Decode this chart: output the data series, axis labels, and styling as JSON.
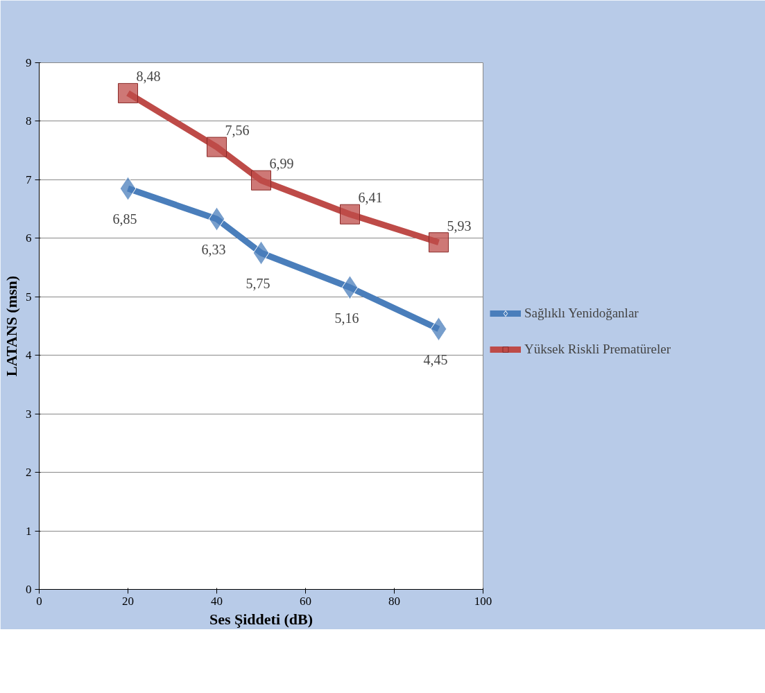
{
  "chart_data": {
    "type": "line",
    "xlabel": "Ses Şiddeti (dB)",
    "ylabel": "LATANS (msn)",
    "x": [
      20,
      40,
      50,
      70,
      90
    ],
    "series": [
      {
        "name": "Sağlıklı Yenidoğanlar",
        "color": "#4a7ebb",
        "marker": "diamond",
        "values": [
          6.85,
          6.33,
          5.75,
          5.16,
          4.45
        ],
        "value_labels": [
          "6,85",
          "6,33",
          "5,75",
          "5,16",
          "4,45"
        ]
      },
      {
        "name": "Yüksek Riskli Prematüreler",
        "color": "#be4b48",
        "marker": "square",
        "values": [
          8.48,
          7.56,
          6.99,
          6.41,
          5.93
        ],
        "value_labels": [
          "8,48",
          "7,56",
          "6,99",
          "6,41",
          "5,93"
        ]
      }
    ],
    "xlim": [
      0,
      100
    ],
    "xticks": [
      0,
      20,
      40,
      60,
      80,
      100
    ],
    "ylim": [
      0,
      9
    ],
    "yticks": [
      0,
      1,
      2,
      3,
      4,
      5,
      6,
      7,
      8,
      9
    ],
    "grid": "y",
    "legend": "right",
    "line_style": "solid"
  }
}
